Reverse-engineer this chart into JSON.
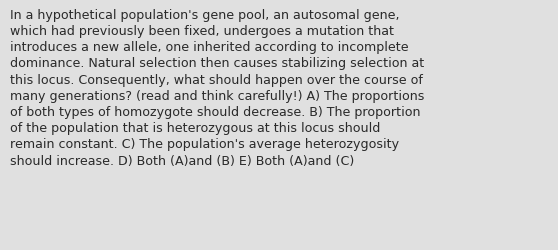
{
  "background_color": "#e0e0e0",
  "text_color": "#2a2a2a",
  "text": "In a hypothetical population's gene pool, an autosomal gene,\nwhich had previously been fixed, undergoes a mutation that\nintroduces a new allele, one inherited according to incomplete\ndominance. Natural selection then causes stabilizing selection at\nthis locus. Consequently, what should happen over the course of\nmany generations? (read and think carefully!) A) The proportions\nof both types of homozygote should decrease. B) The proportion\nof the population that is heterozygous at this locus should\nremain constant. C) The population's average heterozygosity\nshould increase. D) Both (A)and (B) E) Both (A)and (C)",
  "font_size": 9.1,
  "font_family": "DejaVu Sans",
  "fig_width": 5.58,
  "fig_height": 2.51,
  "dpi": 100
}
